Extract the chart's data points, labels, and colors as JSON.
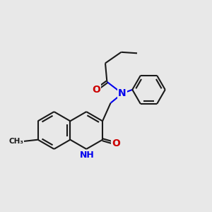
{
  "bg_color": "#e8e8e8",
  "bond_color": "#1a1a1a",
  "N_color": "#0000ee",
  "O_color": "#cc0000",
  "lw": 1.5,
  "fs": 9,
  "figsize": [
    3.0,
    3.0
  ],
  "dpi": 100,
  "xlim": [
    0,
    10
  ],
  "ylim": [
    0,
    10
  ]
}
